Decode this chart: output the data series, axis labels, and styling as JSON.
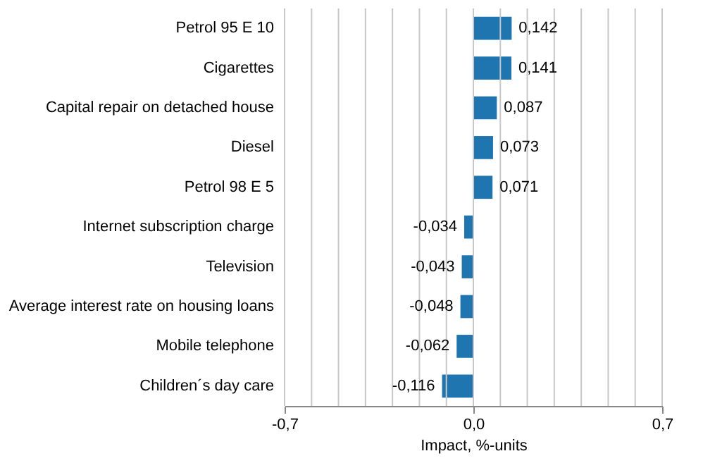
{
  "chart_data": {
    "type": "bar",
    "orientation": "horizontal",
    "categories": [
      "Petrol 95 E 10",
      "Cigarettes",
      "Capital repair on detached house",
      "Diesel",
      "Petrol 98 E 5",
      "Internet subscription charge",
      "Television",
      "Average interest rate on housing loans",
      "Mobile telephone",
      "Children´s day care"
    ],
    "values": [
      0.142,
      0.141,
      0.087,
      0.073,
      0.071,
      -0.034,
      -0.043,
      -0.048,
      -0.062,
      -0.116
    ],
    "value_labels": [
      "0,142",
      "0,141",
      "0,087",
      "0,073",
      "0,071",
      "-0,034",
      "-0,043",
      "-0,048",
      "-0,062",
      "-0,116"
    ],
    "color": "#1f75b0",
    "xlabel": "Impact, %-units",
    "xlim": [
      -0.7,
      0.7
    ],
    "xticks": [
      {
        "value": -0.7,
        "label": "-0,7"
      },
      {
        "value": -0.6,
        "label": null
      },
      {
        "value": -0.5,
        "label": null
      },
      {
        "value": -0.4,
        "label": null
      },
      {
        "value": -0.3,
        "label": null
      },
      {
        "value": -0.2,
        "label": null
      },
      {
        "value": -0.1,
        "label": null
      },
      {
        "value": 0.0,
        "label": "0,0"
      },
      {
        "value": 0.1,
        "label": null
      },
      {
        "value": 0.2,
        "label": null
      },
      {
        "value": 0.3,
        "label": null
      },
      {
        "value": 0.4,
        "label": null
      },
      {
        "value": 0.5,
        "label": null
      },
      {
        "value": 0.6,
        "label": null
      },
      {
        "value": 0.7,
        "label": "0,7"
      }
    ],
    "grid": "x"
  }
}
